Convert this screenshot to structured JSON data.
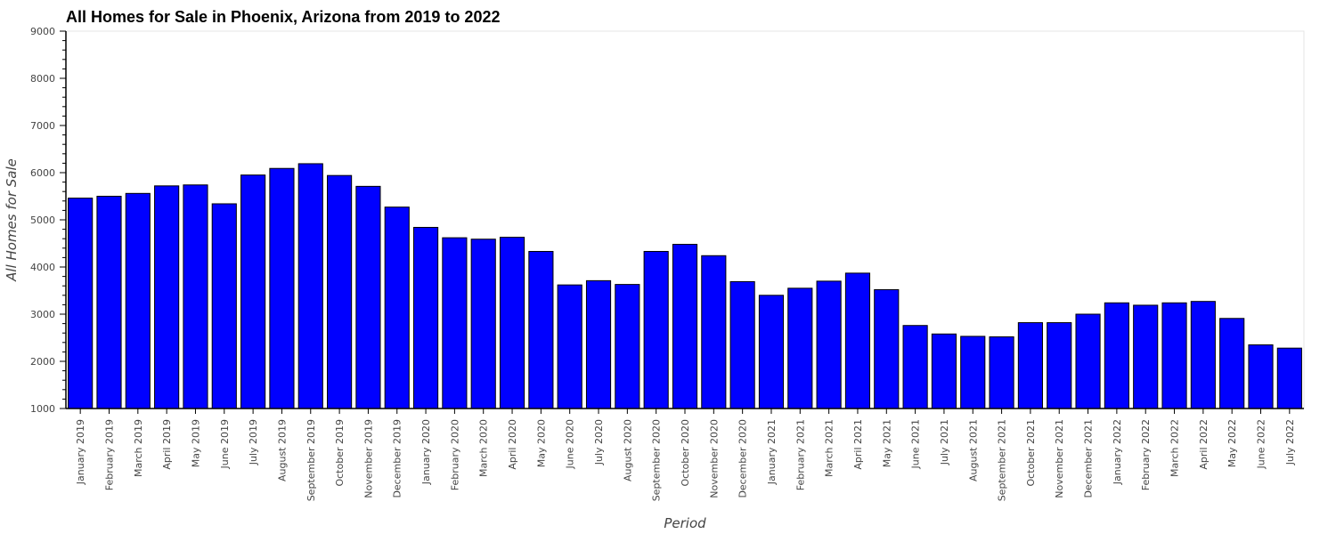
{
  "chart_data": {
    "type": "bar",
    "title": "All Homes for Sale in Phoenix, Arizona from 2019 to 2022",
    "xlabel": "Period",
    "ylabel": "All Homes for Sale",
    "ylim": [
      1000,
      9000
    ],
    "yticks": [
      1000,
      2000,
      3000,
      4000,
      5000,
      6000,
      7000,
      8000,
      9000
    ],
    "grid": false,
    "bar_color": "#0000ff",
    "bar_edge_color": "#000000",
    "categories": [
      "January 2019",
      "February 2019",
      "March 2019",
      "April 2019",
      "May 2019",
      "June 2019",
      "July 2019",
      "August 2019",
      "September 2019",
      "October 2019",
      "November 2019",
      "December 2019",
      "January 2020",
      "February 2020",
      "March 2020",
      "April 2020",
      "May 2020",
      "June 2020",
      "July 2020",
      "August 2020",
      "September 2020",
      "October 2020",
      "November 2020",
      "December 2020",
      "January 2021",
      "February 2021",
      "March 2021",
      "April 2021",
      "May 2021",
      "June 2021",
      "July 2021",
      "August 2021",
      "September 2021",
      "October 2021",
      "November 2021",
      "December 2021",
      "January 2022",
      "February 2022",
      "March 2022",
      "April 2022",
      "May 2022",
      "June 2022",
      "July 2022"
    ],
    "values": [
      5460,
      5500,
      5560,
      5720,
      5740,
      5340,
      5950,
      6090,
      6190,
      5940,
      5710,
      5270,
      4840,
      4620,
      4590,
      4630,
      4330,
      3620,
      3710,
      3630,
      4330,
      4480,
      4240,
      3690,
      3400,
      3550,
      3700,
      3870,
      3520,
      2760,
      2580,
      2530,
      2520,
      2820,
      2820,
      3000,
      3240,
      3190,
      3240,
      3270,
      2910,
      2350,
      2280
    ]
  }
}
